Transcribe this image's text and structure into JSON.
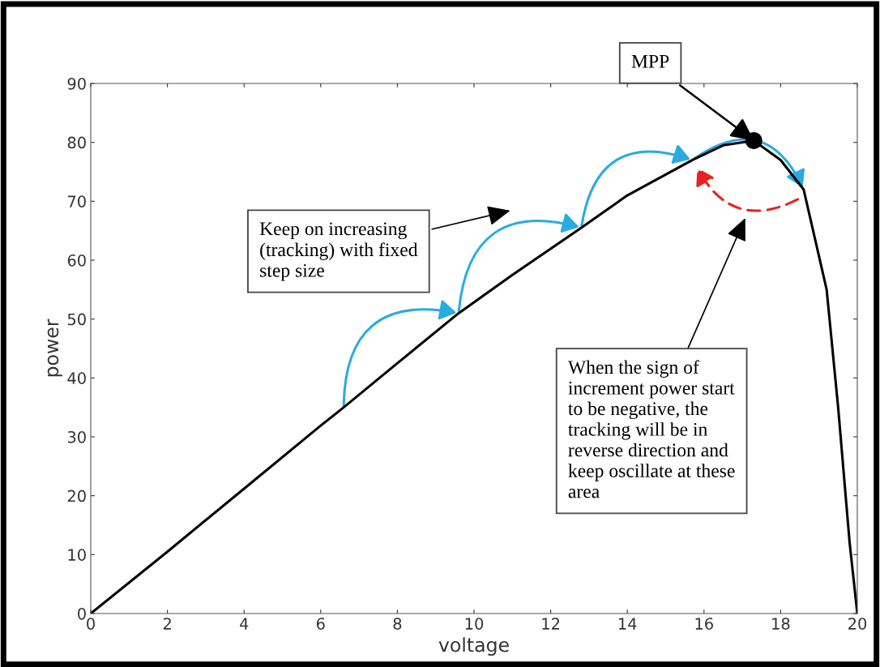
{
  "chart_data": {
    "type": "line",
    "xlabel": "voltage",
    "ylabel": "power",
    "series": [
      {
        "color": "#000000",
        "marker": "none",
        "x": [
          0,
          2,
          4,
          6,
          6.6,
          8,
          9.6,
          11,
          12.8,
          14,
          15.7,
          16.5,
          17.3,
          18,
          18.6,
          19.2,
          19.5,
          19.8,
          20
        ],
        "values": [
          0,
          10.5,
          21.2,
          31.9,
          35,
          42.5,
          51,
          57.5,
          65.5,
          71,
          77,
          79.5,
          80.3,
          77,
          72,
          55,
          35,
          12,
          0
        ]
      },
      {
        "type": "scatter",
        "color": "#000000",
        "marker": "circle",
        "x": [
          17.3
        ],
        "values": [
          80.3
        ]
      }
    ],
    "annotations": [
      {
        "text": "MPP",
        "x": 17.3,
        "y": 80.3
      },
      "Keep on increasing\n(tracking) with fixed\nstep size",
      "When the sign of\nincrement power start\nto be negative, the\ntracking will be in\nreverse direction and\nkeep oscillate at these\narea"
    ],
    "xlim": [
      0,
      20
    ],
    "ylim": [
      0,
      90
    ],
    "xticks": [
      0,
      2,
      4,
      6,
      8,
      10,
      12,
      14,
      16,
      18,
      20
    ],
    "yticks": [
      0,
      10,
      20,
      30,
      40,
      50,
      60,
      70,
      80,
      90
    ],
    "grid": false,
    "legend": false,
    "line_style": "solid"
  }
}
